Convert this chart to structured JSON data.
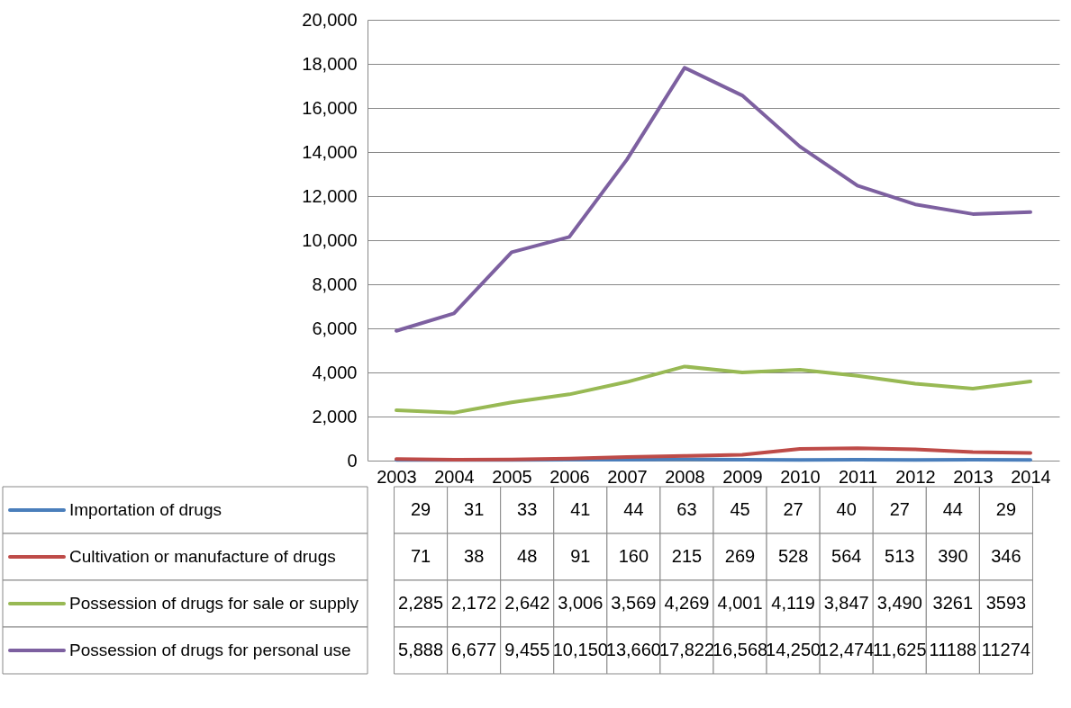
{
  "chart_data": {
    "type": "line",
    "categories": [
      "2003",
      "2004",
      "2005",
      "2006",
      "2007",
      "2008",
      "2009",
      "2010",
      "2011",
      "2012",
      "2013",
      "2014"
    ],
    "ylim": [
      0,
      20000
    ],
    "yticks": [
      0,
      {
        "value": 2000,
        "label": "2,000"
      },
      {
        "value": 4000,
        "label": "4,000"
      },
      {
        "value": 6000,
        "label": "6,000"
      },
      {
        "value": 8000,
        "label": "8,000"
      },
      {
        "value": 10000,
        "label": "10,000"
      },
      {
        "value": 12000,
        "label": "12,000"
      },
      {
        "value": 14000,
        "label": "14,000"
      },
      {
        "value": 16000,
        "label": "16,000"
      },
      {
        "value": 18000,
        "label": "18,000"
      },
      {
        "value": 20000,
        "label": "20,000"
      }
    ],
    "grid": "y",
    "legend": "bottom",
    "series": [
      {
        "name": "Importation of drugs",
        "color": "#4a7ebb",
        "values": [
          29,
          31,
          33,
          41,
          44,
          63,
          45,
          27,
          40,
          27,
          44,
          29
        ],
        "value_labels": [
          "29",
          "31",
          "33",
          "41",
          "44",
          "63",
          "45",
          "27",
          "40",
          "27",
          "44",
          "29"
        ]
      },
      {
        "name": "Cultivation or manufacture of drugs",
        "color": "#be4b48",
        "values": [
          71,
          38,
          48,
          91,
          160,
          215,
          269,
          528,
          564,
          513,
          390,
          346
        ],
        "value_labels": [
          "71",
          "38",
          "48",
          "91",
          "160",
          "215",
          "269",
          "528",
          "564",
          "513",
          "390",
          "346"
        ]
      },
      {
        "name": "Possession of drugs for sale or supply",
        "color": "#98b954",
        "values": [
          2285,
          2172,
          2642,
          3006,
          3569,
          4269,
          4001,
          4119,
          3847,
          3490,
          3261,
          3593
        ],
        "value_labels": [
          "2,285",
          "2,172",
          "2,642",
          "3,006",
          "3,569",
          "4,269",
          "4,001",
          "4,119",
          "3,847",
          "3,490",
          "3261",
          "3593"
        ]
      },
      {
        "name": "Possession of drugs for personal use",
        "color": "#7d60a0",
        "values": [
          5888,
          6677,
          9455,
          10150,
          13660,
          17822,
          16568,
          14250,
          12474,
          11625,
          11188,
          11274
        ],
        "value_labels": [
          "5,888",
          "6,677",
          "9,455",
          "10,150",
          "13,660",
          "17,822",
          "16,568",
          "14,250",
          "12,474",
          "11,625",
          "11188",
          "11274"
        ]
      }
    ]
  }
}
